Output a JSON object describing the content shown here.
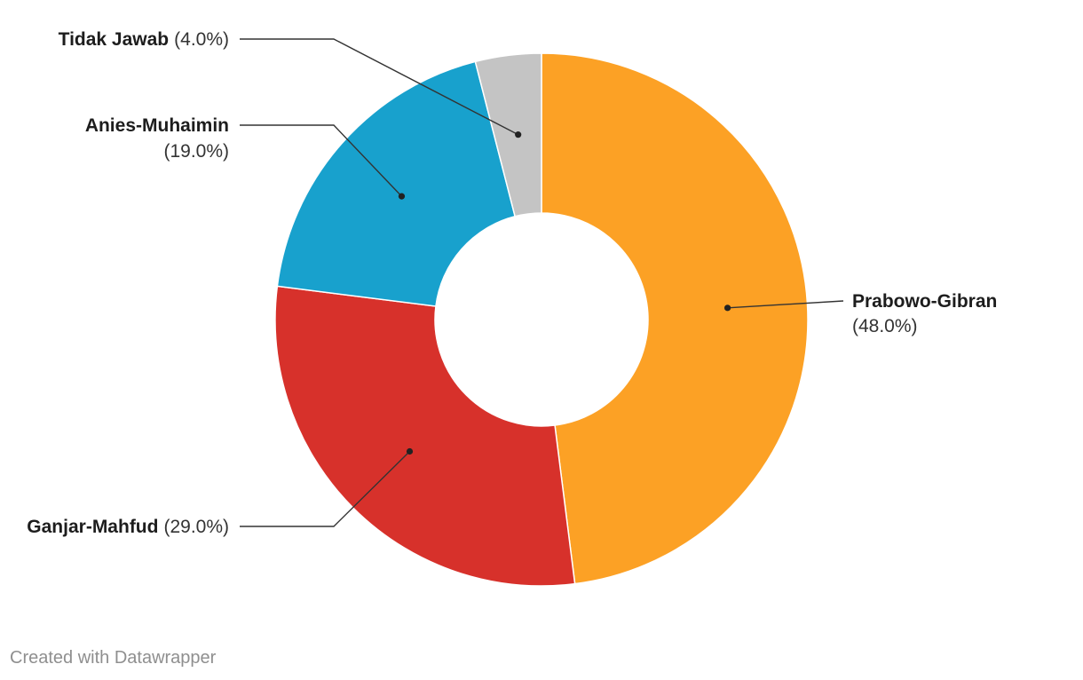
{
  "chart_data": {
    "type": "pie",
    "variant": "donut",
    "title": "",
    "slices": [
      {
        "label": "Prabowo-Gibran",
        "value": 48.0,
        "display": "(48.0%)",
        "color": "#fca125"
      },
      {
        "label": "Ganjar-Mahfud",
        "value": 29.0,
        "display": "(29.0%)",
        "color": "#d7312b"
      },
      {
        "label": "Anies-Muhaimin",
        "value": 19.0,
        "display": "(19.0%)",
        "color": "#18a1cd"
      },
      {
        "label": "Tidak Jawab",
        "value": 4.0,
        "display": "(4.0%)",
        "color": "#c4c4c4"
      }
    ],
    "legend": "none",
    "start": "top",
    "direction": "clockwise"
  },
  "footer": {
    "credit": "Created with Datawrapper"
  }
}
